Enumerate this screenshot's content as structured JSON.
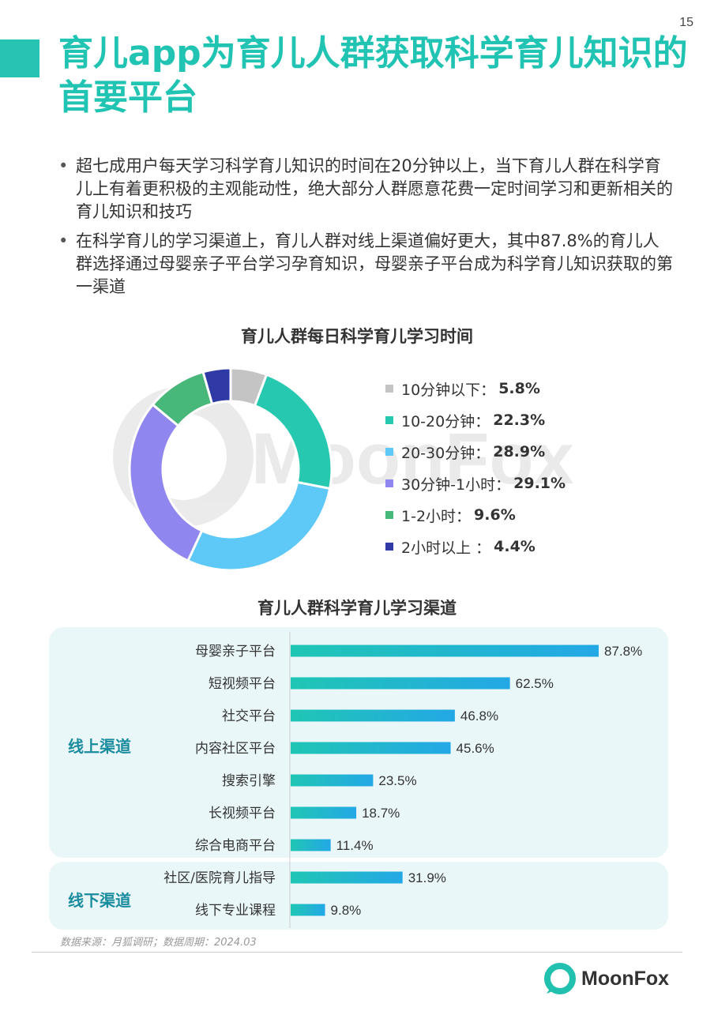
{
  "page_number": "15",
  "title": "育儿app为育儿人群获取科学育儿知识的首要平台",
  "bullets": [
    "超七成用户每天学习科学育儿知识的时间在20分钟以上，当下育儿人群在科学育儿上有着更积极的主观能动性，绝大部分人群愿意花费一定时间学习和更新相关的育儿知识和技巧",
    "在科学育儿的学习渠道上，育儿人群对线上渠道偏好更大，其中87.8%的育儿人群选择通过母婴亲子平台学习孕育知识，母婴亲子平台成为科学育儿知识获取的第一渠道"
  ],
  "watermark_text": "MoonFox",
  "chart_data": [
    {
      "type": "pie",
      "variant": "donut",
      "title": "育儿人群每日科学育儿学习时间",
      "legend_position": "right",
      "slices": [
        {
          "label": "10分钟以下：",
          "value": 5.8,
          "value_label": "5.8%",
          "color": "#c4c4c4"
        },
        {
          "label": "10-20分钟：",
          "value": 22.3,
          "value_label": "22.3%",
          "color": "#27c8b0"
        },
        {
          "label": "20-30分钟：",
          "value": 28.9,
          "value_label": "28.9%",
          "color": "#5ec8f6"
        },
        {
          "label": "30分钟-1小时：",
          "value": 29.1,
          "value_label": "29.1%",
          "color": "#8f86ef"
        },
        {
          "label": "1-2小时：",
          "value": 9.6,
          "value_label": "9.6%",
          "color": "#48b77a"
        },
        {
          "label": "2小时以上 ：",
          "value": 4.4,
          "value_label": "4.4%",
          "color": "#2f3aa6"
        }
      ]
    },
    {
      "type": "bar",
      "orientation": "horizontal",
      "title": "育儿人群科学育儿学习渠道",
      "xlim": [
        0,
        100
      ],
      "groups": [
        {
          "label": "线上渠道",
          "categories": [
            "母婴亲子平台",
            "短视频平台",
            "社交平台",
            "内容社区平台",
            "搜索引擎",
            "长视频平台",
            "综合电商平台"
          ],
          "values": [
            87.8,
            62.5,
            46.8,
            45.6,
            23.5,
            18.7,
            11.4
          ],
          "value_labels": [
            "87.8%",
            "62.5%",
            "46.8%",
            "45.6%",
            "23.5%",
            "18.7%",
            "11.4%"
          ]
        },
        {
          "label": "线下渠道",
          "categories": [
            "社区/医院育儿指导",
            "线下专业课程"
          ],
          "values": [
            31.9,
            9.8
          ],
          "value_labels": [
            "31.9%",
            "9.8%"
          ]
        }
      ],
      "bar_gradient": [
        "#20c6b4",
        "#23a8e6"
      ]
    }
  ],
  "source": "数据来源：月狐调研；数据周期：2024.03",
  "brand": "MoonFox"
}
